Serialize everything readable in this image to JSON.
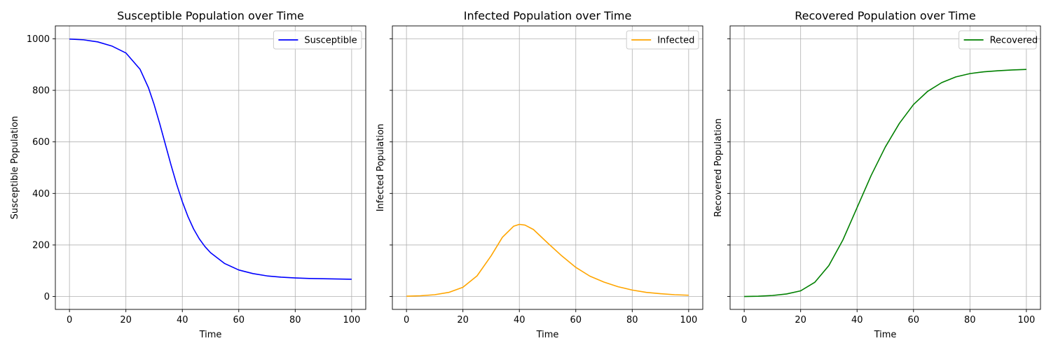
{
  "figure": {
    "background": "#ffffff"
  },
  "chart_data": [
    {
      "type": "line",
      "title": "Susceptible Population over Time",
      "xlabel": "Time",
      "ylabel": "Susceptible Population",
      "xlim": [
        -5,
        105
      ],
      "ylim": [
        -50,
        1050
      ],
      "xticks": [
        0,
        20,
        40,
        60,
        80,
        100
      ],
      "yticks": [
        0,
        200,
        400,
        600,
        800,
        1000
      ],
      "show_yticklabels": true,
      "grid": true,
      "legend_position": "top-right",
      "series": [
        {
          "name": "Susceptible",
          "color": "#0000ff",
          "x": [
            0,
            5,
            10,
            15,
            20,
            25,
            28,
            30,
            32,
            34,
            36,
            38,
            40,
            42,
            44,
            46,
            48,
            50,
            55,
            60,
            65,
            70,
            75,
            80,
            85,
            90,
            95,
            100
          ],
          "y": [
            999,
            996,
            988,
            972,
            945,
            882,
            810,
            745,
            670,
            590,
            510,
            435,
            368,
            310,
            262,
            224,
            194,
            170,
            128,
            103,
            89,
            80,
            75,
            72,
            70,
            69,
            68,
            67
          ]
        }
      ]
    },
    {
      "type": "line",
      "title": "Infected Population over Time",
      "xlabel": "Time",
      "ylabel": "Infected Population",
      "xlim": [
        -5,
        105
      ],
      "ylim": [
        -50,
        1050
      ],
      "xticks": [
        0,
        20,
        40,
        60,
        80,
        100
      ],
      "yticks": [
        0,
        200,
        400,
        600,
        800,
        1000
      ],
      "show_yticklabels": false,
      "grid": true,
      "legend_position": "top-right",
      "series": [
        {
          "name": "Infected",
          "color": "#ffa500",
          "x": [
            0,
            5,
            10,
            15,
            20,
            25,
            30,
            34,
            38,
            40,
            42,
            45,
            50,
            55,
            60,
            65,
            70,
            75,
            80,
            85,
            90,
            95,
            100
          ],
          "y": [
            1,
            3,
            7,
            16,
            36,
            80,
            158,
            230,
            273,
            280,
            277,
            260,
            208,
            158,
            113,
            79,
            56,
            38,
            25,
            16,
            11,
            7,
            5
          ]
        }
      ]
    },
    {
      "type": "line",
      "title": "Recovered Population over Time",
      "xlabel": "Time",
      "ylabel": "Recovered Population",
      "xlim": [
        -5,
        105
      ],
      "ylim": [
        -50,
        1050
      ],
      "xticks": [
        0,
        20,
        40,
        60,
        80,
        100
      ],
      "yticks": [
        0,
        200,
        400,
        600,
        800,
        1000
      ],
      "show_yticklabels": false,
      "grid": true,
      "legend_position": "top-right",
      "series": [
        {
          "name": "Recovered",
          "color": "#008000",
          "x": [
            0,
            5,
            10,
            15,
            20,
            25,
            30,
            35,
            40,
            45,
            50,
            55,
            60,
            65,
            70,
            75,
            80,
            85,
            90,
            95,
            100
          ],
          "y": [
            0,
            1,
            4,
            10,
            22,
            55,
            120,
            220,
            345,
            470,
            580,
            672,
            745,
            796,
            830,
            852,
            865,
            872,
            876,
            879,
            881
          ]
        }
      ]
    }
  ]
}
